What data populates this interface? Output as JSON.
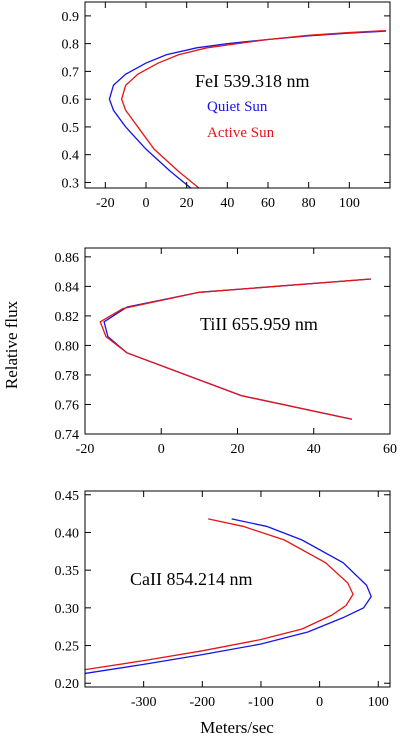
{
  "y_axis_label": "Relative flux",
  "x_axis_label": "Meters/sec",
  "colors": {
    "quiet": "#1515e6",
    "active": "#e61515",
    "axis": "#000000"
  },
  "chart_data": [
    {
      "type": "line",
      "title": "FeI 539.318 nm",
      "xlim": [
        -30,
        120
      ],
      "ylim": [
        0.28,
        0.95
      ],
      "xticks": [
        -20,
        0,
        20,
        40,
        60,
        80,
        100
      ],
      "yticks": [
        0.3,
        0.4,
        0.5,
        0.6,
        0.7,
        0.8,
        0.9
      ],
      "ytick_labels": [
        "0.3",
        "0.4",
        "0.5",
        "0.6",
        "0.7",
        "0.8",
        "0.9"
      ],
      "legend": [
        "Quiet Sun",
        "Active Sun"
      ],
      "series": [
        {
          "name": "Quiet Sun",
          "color": "#1515e6",
          "x": [
            22,
            12,
            0,
            -10,
            -16,
            -18,
            -16,
            -10,
            0,
            10,
            25,
            40,
            60,
            80,
            100,
            118
          ],
          "y": [
            0.28,
            0.34,
            0.42,
            0.5,
            0.56,
            0.6,
            0.65,
            0.69,
            0.73,
            0.76,
            0.785,
            0.8,
            0.815,
            0.828,
            0.838,
            0.845
          ]
        },
        {
          "name": "Active Sun",
          "color": "#e61515",
          "x": [
            26,
            16,
            4,
            -4,
            -10,
            -12,
            -10,
            -4,
            6,
            16,
            30,
            45,
            60,
            80,
            100,
            118
          ],
          "y": [
            0.28,
            0.34,
            0.42,
            0.5,
            0.56,
            0.6,
            0.65,
            0.69,
            0.73,
            0.76,
            0.785,
            0.8,
            0.815,
            0.83,
            0.84,
            0.847
          ]
        }
      ]
    },
    {
      "type": "line",
      "title": "TiII 655.959 nm",
      "xlim": [
        -20,
        60
      ],
      "ylim": [
        0.74,
        0.866
      ],
      "xticks": [
        -20,
        0,
        20,
        40,
        60
      ],
      "yticks": [
        0.74,
        0.76,
        0.78,
        0.8,
        0.82,
        0.84,
        0.86
      ],
      "ytick_labels": [
        "0.74",
        "0.76",
        "0.78",
        "0.80",
        "0.82",
        "0.84",
        "0.86"
      ],
      "series": [
        {
          "name": "Quiet Sun",
          "color": "#1515e6",
          "x": [
            50,
            21,
            -9,
            -14,
            -15,
            -9,
            10,
            55
          ],
          "y": [
            0.75,
            0.766,
            0.795,
            0.806,
            0.816,
            0.826,
            0.836,
            0.845
          ]
        },
        {
          "name": "Active Sun",
          "color": "#e61515",
          "x": [
            50,
            21,
            -9,
            -14.5,
            -16,
            -10,
            10,
            55
          ],
          "y": [
            0.75,
            0.766,
            0.795,
            0.806,
            0.816,
            0.825,
            0.836,
            0.845
          ]
        }
      ]
    },
    {
      "type": "line",
      "title": "CaII 854.214 nm",
      "xlim": [
        -400,
        120
      ],
      "ylim": [
        0.195,
        0.455
      ],
      "xticks": [
        -300,
        -200,
        -100,
        0,
        100
      ],
      "yticks": [
        0.2,
        0.25,
        0.3,
        0.35,
        0.4,
        0.45
      ],
      "ytick_labels": [
        "0.20",
        "0.25",
        "0.30",
        "0.35",
        "0.40",
        "0.45"
      ],
      "series": [
        {
          "name": "Quiet Sun",
          "color": "#1515e6",
          "x": [
            -400,
            -300,
            -200,
            -100,
            -20,
            40,
            75,
            88,
            80,
            40,
            -30,
            -90,
            -150
          ],
          "y": [
            0.213,
            0.225,
            0.238,
            0.252,
            0.268,
            0.287,
            0.3,
            0.315,
            0.33,
            0.36,
            0.39,
            0.408,
            0.418
          ]
        },
        {
          "name": "Active Sun",
          "color": "#e61515",
          "x": [
            -400,
            -300,
            -200,
            -100,
            -30,
            20,
            45,
            57,
            48,
            10,
            -60,
            -130,
            -190
          ],
          "y": [
            0.218,
            0.23,
            0.243,
            0.258,
            0.272,
            0.29,
            0.303,
            0.318,
            0.333,
            0.36,
            0.39,
            0.408,
            0.418
          ]
        }
      ]
    }
  ]
}
